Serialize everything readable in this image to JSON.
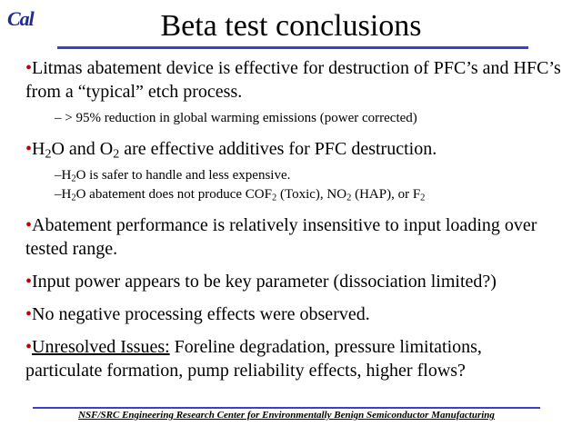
{
  "logo": "Cal",
  "title": "Beta test conclusions",
  "bullets": [
    {
      "pre": "Litmas abatement device is effective for destruction of PFC’s and HFC’s from a “typical” etch process."
    },
    {
      "sub": "– > 95% reduction in global warming emissions (power corrected)"
    },
    {
      "pre": "H",
      "sub1": "2",
      "mid": "O and O",
      "sub2": "2",
      "post": " are effective additives for PFC destruction."
    },
    {
      "s1a": "–H",
      "s1b": "2",
      "s1c": "O is safer to handle and less expensive."
    },
    {
      "s2a": "–H",
      "s2b": "2",
      "s2c": "O abatement does not produce COF",
      "s2d": "2",
      "s2e": " (Toxic), NO",
      "s2f": "2",
      "s2g": " (HAP), or F",
      "s2h": "2"
    },
    {
      "pre": "Abatement performance is relatively insensitive to input loading over tested range."
    },
    {
      "pre": "Input power appears to be key parameter (dissociation limited?)"
    },
    {
      "pre": "No negative processing effects were observed."
    },
    {
      "label": "Unresolved Issues:",
      "post": " Foreline degradation, pressure limitations, particulate formation, pump reliability effects, higher flows?"
    }
  ],
  "bullet_char": "•",
  "footer": "NSF/SRC Engineering Research Center for Environmentally Benign Semiconductor Manufacturing"
}
